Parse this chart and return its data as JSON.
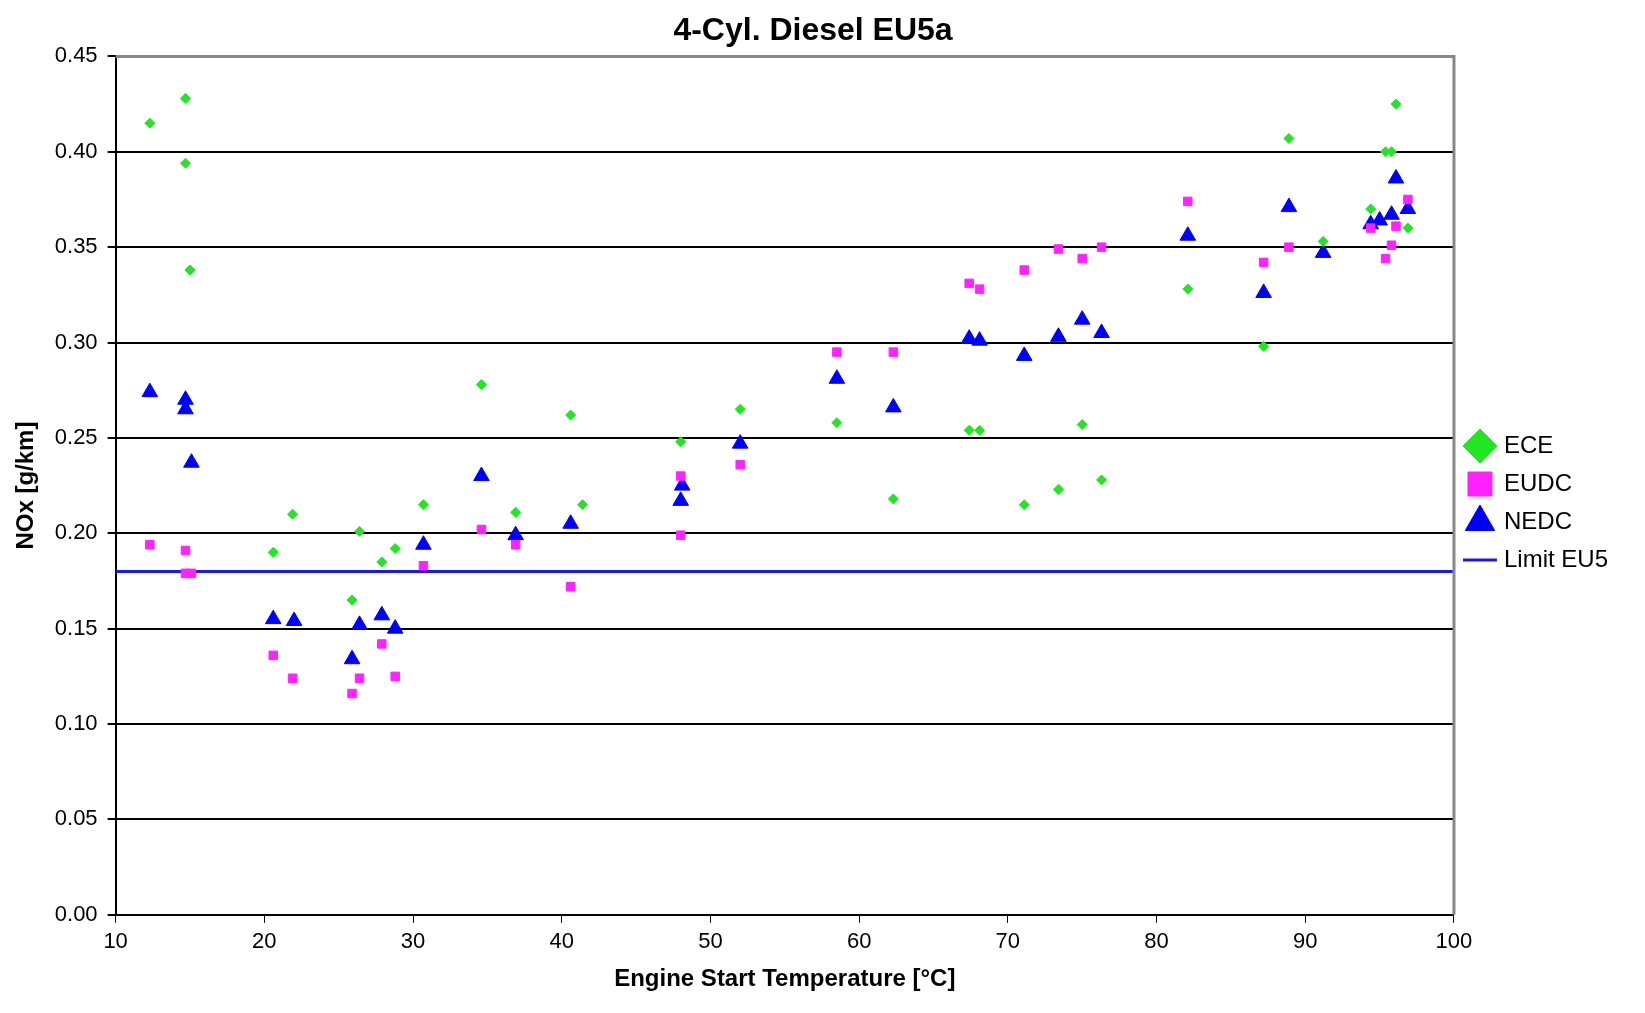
{
  "chart_data": {
    "type": "scatter",
    "title": "4-Cyl. Diesel EU5a",
    "xlabel": "Engine Start Temperature [°C]",
    "ylabel": "NOx [g/km]",
    "xlim": [
      10,
      100
    ],
    "xticks": [
      10,
      20,
      30,
      40,
      50,
      60,
      70,
      80,
      90,
      100
    ],
    "ylim": [
      0,
      0.45
    ],
    "yticks": [
      {
        "value": 0,
        "label": "0.00"
      },
      {
        "value": 0.05,
        "label": "0.05"
      },
      {
        "value": 0.1,
        "label": "0.10"
      },
      {
        "value": 0.15,
        "label": "0.15"
      },
      {
        "value": 0.2,
        "label": "0.20"
      },
      {
        "value": 0.25,
        "label": "0.25"
      },
      {
        "value": 0.3,
        "label": "0.30"
      },
      {
        "value": 0.35,
        "label": "0.35"
      },
      {
        "value": 0.4,
        "label": "0.40"
      },
      {
        "value": 0.45,
        "label": "0.45"
      }
    ],
    "grid": "y",
    "legend": "right",
    "series": [
      {
        "name": "ECE",
        "color": "#22e622",
        "marker": "diamond",
        "x": [
          12.3,
          14.7,
          14.7,
          15.0,
          20.6,
          21.9,
          25.9,
          26.4,
          27.9,
          28.8,
          30.7,
          34.6,
          36.9,
          40.6,
          41.4,
          48.0,
          52.0,
          58.5,
          62.3,
          67.4,
          68.1,
          71.1,
          73.4,
          75.0,
          76.3,
          82.1,
          87.2,
          88.9,
          91.2,
          94.4,
          95.4,
          95.8,
          96.1,
          96.9
        ],
        "values": [
          0.415,
          0.428,
          0.394,
          0.338,
          0.19,
          0.21,
          0.165,
          0.201,
          0.185,
          0.192,
          0.215,
          0.278,
          0.211,
          0.262,
          0.215,
          0.248,
          0.265,
          0.258,
          0.218,
          0.254,
          0.254,
          0.215,
          0.223,
          0.257,
          0.228,
          0.328,
          0.298,
          0.407,
          0.353,
          0.37,
          0.4,
          0.4,
          0.425,
          0.36
        ]
      },
      {
        "name": "EUDC",
        "color": "#ff22ff",
        "marker": "square",
        "x": [
          12.3,
          14.7,
          14.7,
          15.1,
          20.6,
          21.9,
          25.9,
          26.4,
          27.9,
          28.8,
          30.7,
          34.6,
          36.9,
          40.6,
          48.0,
          48.0,
          52.0,
          58.5,
          62.3,
          67.4,
          68.1,
          71.1,
          73.4,
          75.0,
          76.3,
          82.1,
          87.2,
          88.9,
          94.4,
          95.4,
          95.8,
          96.1,
          96.9
        ],
        "values": [
          0.194,
          0.191,
          0.179,
          0.179,
          0.136,
          0.124,
          0.116,
          0.124,
          0.142,
          0.125,
          0.183,
          0.202,
          0.194,
          0.172,
          0.23,
          0.199,
          0.236,
          0.295,
          0.295,
          0.331,
          0.328,
          0.338,
          0.349,
          0.344,
          0.35,
          0.374,
          0.342,
          0.35,
          0.36,
          0.344,
          0.351,
          0.361,
          0.375
        ]
      },
      {
        "name": "NEDC",
        "color": "#0000ff",
        "marker": "triangle",
        "x": [
          12.3,
          14.7,
          14.7,
          15.1,
          20.6,
          22.0,
          25.9,
          26.4,
          27.9,
          28.8,
          30.7,
          34.6,
          36.9,
          40.6,
          48.0,
          48.1,
          52.0,
          58.5,
          62.3,
          67.4,
          68.1,
          71.1,
          73.4,
          75.0,
          76.3,
          82.1,
          87.2,
          88.9,
          91.2,
          94.4,
          95.0,
          95.8,
          96.1,
          96.9
        ],
        "values": [
          0.274,
          0.27,
          0.265,
          0.237,
          0.155,
          0.154,
          0.134,
          0.152,
          0.157,
          0.15,
          0.194,
          0.23,
          0.199,
          0.205,
          0.217,
          0.225,
          0.247,
          0.281,
          0.266,
          0.302,
          0.301,
          0.293,
          0.303,
          0.312,
          0.305,
          0.356,
          0.326,
          0.371,
          0.347,
          0.362,
          0.364,
          0.367,
          0.386,
          0.37
        ]
      },
      {
        "name": "Limit EU5",
        "type": "line",
        "color": "#1a1ae6",
        "marker": "none",
        "x": [
          10,
          100
        ],
        "values": [
          0.18,
          0.18
        ]
      }
    ]
  }
}
